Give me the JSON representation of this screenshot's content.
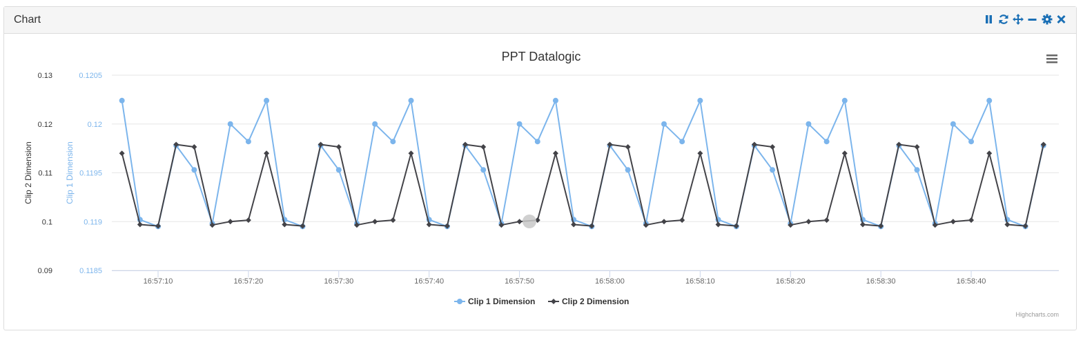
{
  "panel": {
    "title": "Chart"
  },
  "toolbar": {
    "icons": [
      "pause-icon",
      "refresh-icon",
      "move-icon",
      "minimize-icon",
      "gear-icon",
      "close-icon"
    ],
    "color": "#1a6fb5"
  },
  "chart_data": {
    "type": "line",
    "title": "PPT Datalogic",
    "x_ticks": [
      "16:57:10",
      "16:57:20",
      "16:57:30",
      "16:57:40",
      "16:57:50",
      "16:58:00",
      "16:58:10",
      "16:58:20",
      "16:58:30",
      "16:58:40"
    ],
    "x_tick_seconds": [
      10,
      20,
      30,
      40,
      50,
      60,
      70,
      80,
      90,
      100
    ],
    "x_range_seconds": [
      4.88,
      109.7
    ],
    "grid": true,
    "legend_placement": "bottom-center",
    "credit": "Highcharts.com",
    "y_axes": [
      {
        "label": "Clip 2 Dimension",
        "ticks": [
          "0.13",
          "0.12",
          "0.11",
          "0.1",
          "0.09"
        ],
        "range": [
          0.09,
          0.13
        ],
        "color": "#333333"
      },
      {
        "label": "Clip 1 Dimension",
        "ticks": [
          "0.1205",
          "0.12",
          "0.1195",
          "0.119",
          "0.1185"
        ],
        "range": [
          0.1185,
          0.1205
        ],
        "color": "#7cb5ec"
      }
    ],
    "series": [
      {
        "name": "Clip 1 Dimension",
        "axis": 1,
        "color": "#7cb5ec",
        "marker": "circle",
        "x": [
          6,
          8,
          10,
          12,
          14,
          16,
          18,
          20,
          22,
          24,
          26,
          28,
          30,
          32,
          34,
          36,
          38,
          40,
          42,
          44,
          46,
          48,
          50,
          52,
          54,
          56,
          58,
          60,
          62,
          64,
          66,
          68,
          70,
          72,
          74,
          76,
          78,
          80,
          82,
          84,
          86,
          88,
          90,
          92,
          94,
          96,
          98,
          100,
          102,
          104,
          106,
          108
        ],
        "values": [
          0.12024,
          0.11902,
          0.11895,
          0.11978,
          0.11953,
          0.11898,
          0.12,
          0.11982,
          0.12024,
          0.11902,
          0.11895,
          0.11978,
          0.11953,
          0.11898,
          0.12,
          0.11982,
          0.12024,
          0.11902,
          0.11895,
          0.11978,
          0.11953,
          0.11898,
          0.12,
          0.11982,
          0.12024,
          0.11902,
          0.11895,
          0.11978,
          0.11953,
          0.11898,
          0.12,
          0.11982,
          0.12024,
          0.11902,
          0.11895,
          0.11978,
          0.11953,
          0.11898,
          0.12,
          0.11982,
          0.12024,
          0.11902,
          0.11895,
          0.11978,
          0.11953,
          0.11898,
          0.12,
          0.11982,
          0.12024,
          0.11902,
          0.11895,
          0.11978
        ]
      },
      {
        "name": "Clip 2 Dimension",
        "axis": 0,
        "color": "#434348",
        "marker": "diamond",
        "x": [
          6,
          8,
          10,
          12,
          14,
          16,
          18,
          20,
          22,
          24,
          26,
          28,
          30,
          32,
          34,
          36,
          38,
          40,
          42,
          44,
          46,
          48,
          50,
          52,
          54,
          56,
          58,
          60,
          62,
          64,
          66,
          68,
          70,
          72,
          74,
          76,
          78,
          80,
          82,
          84,
          86,
          88,
          90,
          92,
          94,
          96,
          98,
          100,
          102,
          104,
          106,
          108
        ],
        "values": [
          0.114,
          0.0994,
          0.0991,
          0.1158,
          0.1153,
          0.0993,
          0.1,
          0.1003,
          0.114,
          0.0994,
          0.0991,
          0.1158,
          0.1153,
          0.0993,
          0.1,
          0.1003,
          0.114,
          0.0994,
          0.0991,
          0.1158,
          0.1153,
          0.0993,
          0.1,
          0.1003,
          0.114,
          0.0994,
          0.0991,
          0.1158,
          0.1153,
          0.0993,
          0.1,
          0.1003,
          0.114,
          0.0994,
          0.0991,
          0.1158,
          0.1153,
          0.0993,
          0.1,
          0.1003,
          0.114,
          0.0994,
          0.0991,
          0.1158,
          0.1153,
          0.0993,
          0.1,
          0.1003,
          0.114,
          0.0994,
          0.0991,
          0.1158
        ]
      }
    ]
  }
}
